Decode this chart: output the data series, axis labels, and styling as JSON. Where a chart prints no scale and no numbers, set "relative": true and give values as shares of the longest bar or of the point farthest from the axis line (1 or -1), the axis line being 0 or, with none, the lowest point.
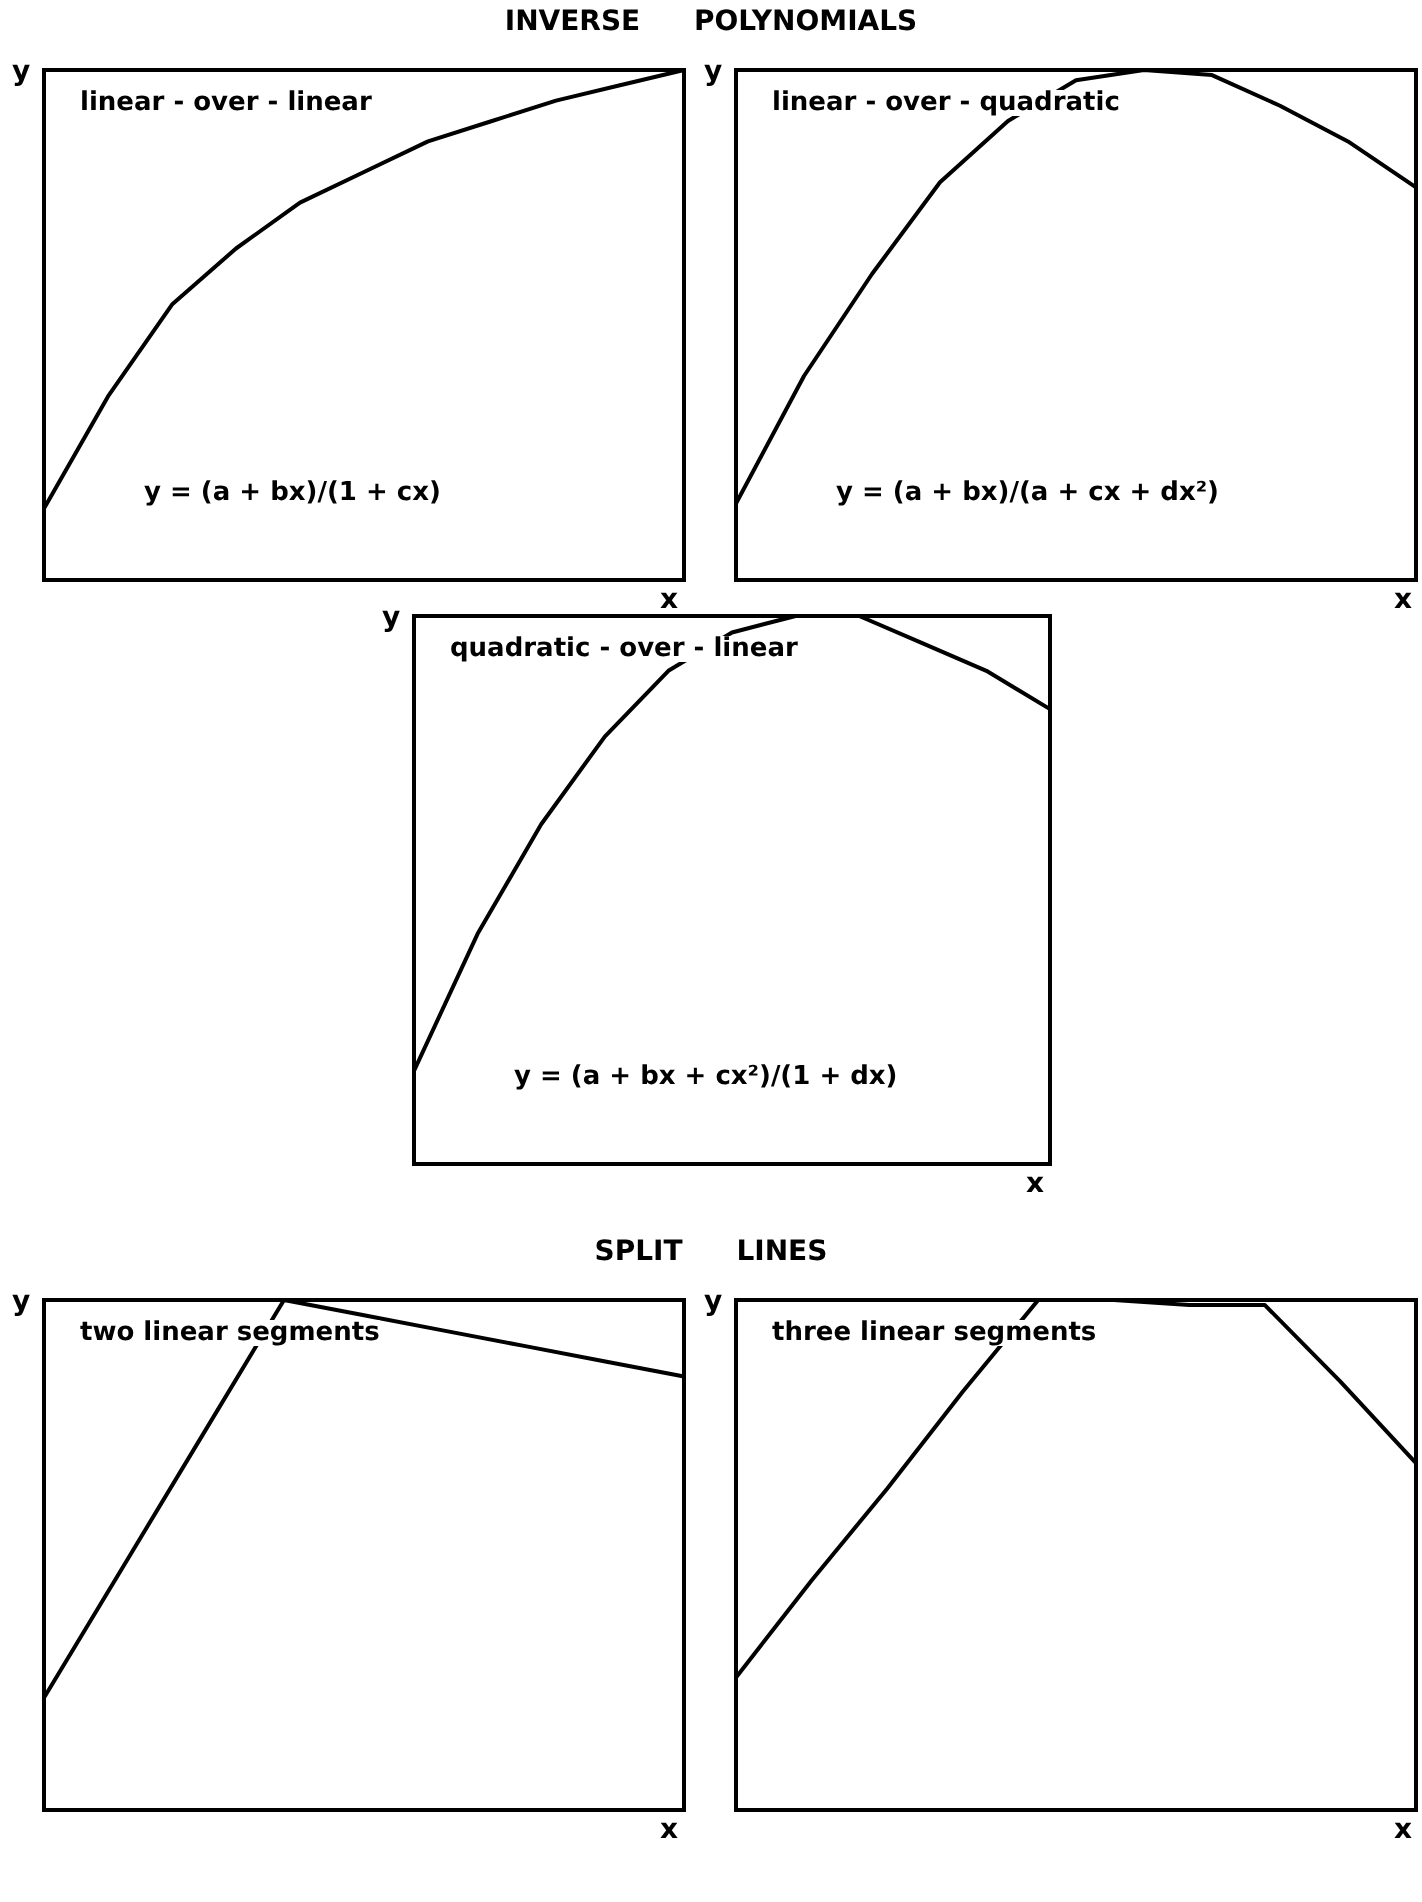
{
  "chart_data": [
    {
      "type": "line",
      "title": "INVERSE POLYNOMIALS",
      "xlabel": "x",
      "ylabel": "y",
      "relative": true,
      "marker": "none",
      "line_style": "solid",
      "annotations": [
        "linear - over - linear",
        "y = (a + bx)/(1 + cx)"
      ],
      "categories": [
        null,
        null,
        null,
        null,
        null,
        null,
        null,
        null,
        null,
        null,
        null
      ],
      "series": [
        {
          "color": "#000000",
          "values": [
            0.14,
            0.36,
            0.54,
            0.65,
            0.74,
            0.8,
            0.86,
            0.9,
            0.94,
            0.97,
            1
          ]
        }
      ]
    },
    {
      "type": "line",
      "xlabel": "x",
      "ylabel": "y",
      "relative": true,
      "marker": "none",
      "line_style": "solid",
      "annotations": [
        "linear - over - quadratic",
        "y = (a + bx)/(a + cx + dx²)"
      ],
      "categories": [
        null,
        null,
        null,
        null,
        null,
        null,
        null,
        null,
        null,
        null,
        null
      ],
      "series": [
        {
          "color": "#000000",
          "values": [
            0.15,
            0.4,
            0.6,
            0.78,
            0.9,
            0.98,
            1,
            0.99,
            0.93,
            0.86,
            0.77
          ]
        }
      ]
    },
    {
      "type": "line",
      "xlabel": "x",
      "ylabel": "y",
      "relative": true,
      "marker": "none",
      "line_style": "solid",
      "annotations": [
        "quadratic - over - linear",
        "y = (a + bx + cx²)/(1 + dx)"
      ],
      "categories": [
        null,
        null,
        null,
        null,
        null,
        null,
        null,
        null,
        null,
        null,
        null
      ],
      "series": [
        {
          "color": "#000000",
          "values": [
            0.17,
            0.42,
            0.62,
            0.78,
            0.9,
            0.97,
            1,
            1,
            0.95,
            0.9,
            0.83
          ]
        }
      ]
    },
    {
      "type": "line",
      "title": "SPLIT LINES",
      "xlabel": "x",
      "ylabel": "y",
      "relative": true,
      "marker": "none",
      "line_style": "solid",
      "annotations": [
        "two linear segments"
      ],
      "categories": [
        null,
        null,
        null,
        null,
        null,
        null,
        null,
        null,
        null
      ],
      "series": [
        {
          "color": "#000000",
          "values": [
            0.22,
            0.48,
            0.74,
            1,
            0.97,
            0.94,
            0.91,
            0.88,
            0.85
          ]
        }
      ]
    },
    {
      "type": "line",
      "xlabel": "x",
      "ylabel": "y",
      "relative": true,
      "marker": "none",
      "line_style": "solid",
      "annotations": [
        "three linear segments"
      ],
      "categories": [
        null,
        null,
        null,
        null,
        null,
        null,
        null,
        null,
        null,
        null
      ],
      "series": [
        {
          "color": "#000000",
          "values": [
            0.26,
            0.45,
            0.63,
            0.82,
            1,
            1,
            0.99,
            0.99,
            0.84,
            0.68
          ]
        }
      ]
    }
  ]
}
